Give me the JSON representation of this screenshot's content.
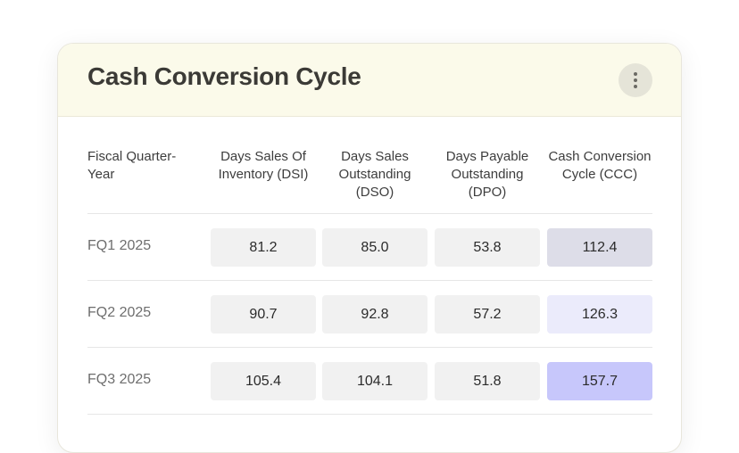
{
  "card": {
    "title": "Cash Conversion Cycle",
    "menu_icon": "more-vertical-icon"
  },
  "table": {
    "headers": [
      "Fiscal Quarter-Year",
      "Days Sales Of Inventory (DSI)",
      "Days Sales Outstanding (DSO)",
      "Days Payable Outstanding (DPO)",
      "Cash Conversion Cycle (CCC)"
    ],
    "rows": [
      {
        "label": "FQ1 2025",
        "values": [
          "81.2",
          "85.0",
          "53.8",
          "112.4"
        ],
        "ccc_highlight": "#dddde8"
      },
      {
        "label": "FQ2 2025",
        "values": [
          "90.7",
          "92.8",
          "57.2",
          "126.3"
        ],
        "ccc_highlight": "#ebebfb"
      },
      {
        "label": "FQ3 2025",
        "values": [
          "105.4",
          "104.1",
          "51.8",
          "157.7"
        ],
        "ccc_highlight": "#c7c7fb"
      }
    ]
  },
  "colors": {
    "header_bg": "#fbfaea",
    "cell_bg": "#f1f1f1"
  }
}
